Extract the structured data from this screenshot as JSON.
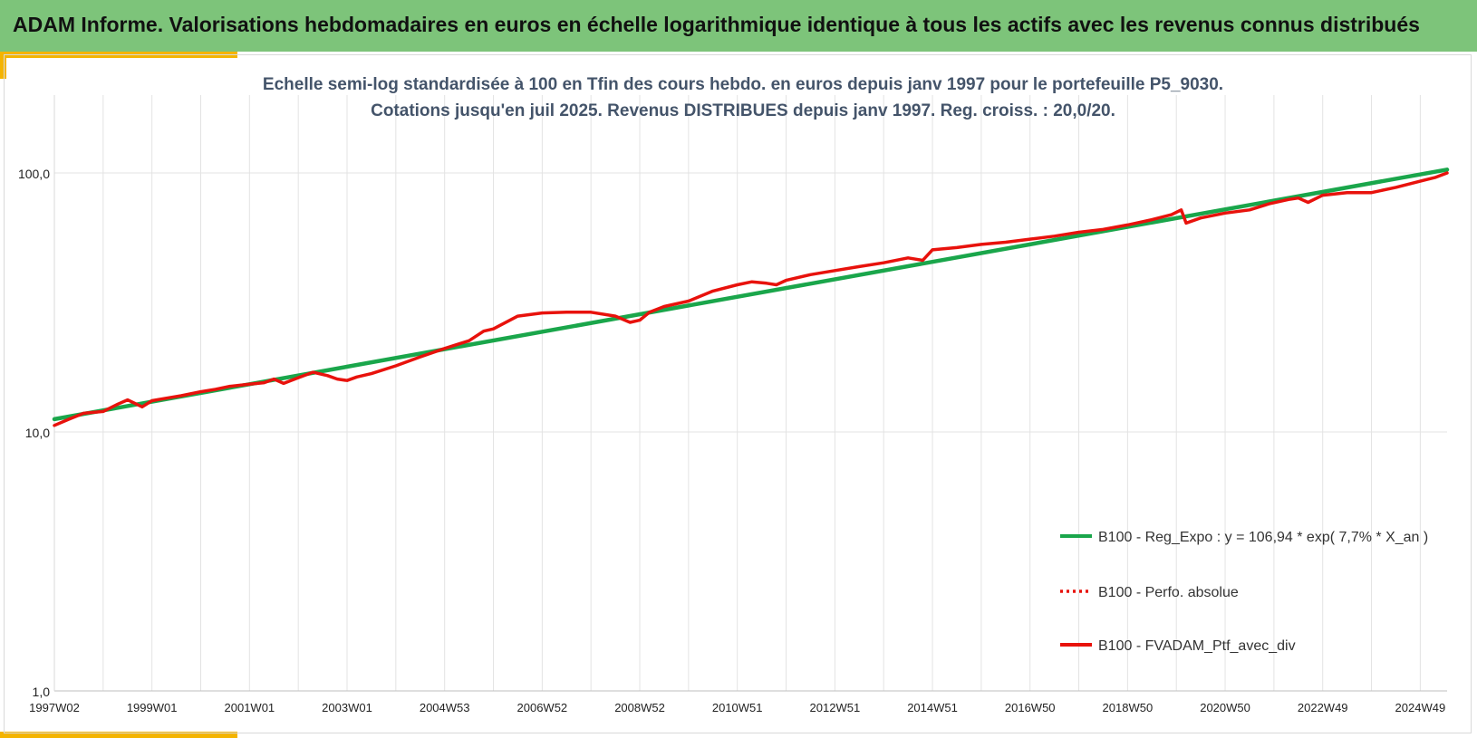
{
  "banner": {
    "title": "ADAM Informe. Valorisations hebdomadaires en euros en échelle logarithmique identique à tous les actifs avec les revenus connus distribués"
  },
  "colors": {
    "banner_bg": "#7dc47a",
    "accent": "#f4b400",
    "regression_line": "#1aa64b",
    "portfolio_line": "#e8120c",
    "grid": "#e3e3e3"
  },
  "chart_data": {
    "type": "line",
    "title": "Echelle semi-log standardisée  à 100 en Tfin des cours hebdo.  en euros depuis janv 1997 pour le portefeuille P5_9030.",
    "subtitle": "Cotations jusqu'en juil 2025. Revenus DISTRIBUES depuis janv 1997. Reg. croiss. : 20,0/20.",
    "xlabel": "",
    "ylabel": "",
    "y_scale": "log",
    "ylim": [
      1,
      200
    ],
    "y_ticks": [
      {
        "value": 1,
        "label": "1,0"
      },
      {
        "value": 10,
        "label": "10,0"
      },
      {
        "value": 100,
        "label": "100,0"
      }
    ],
    "xlim": [
      1997.0,
      2025.55
    ],
    "x_ticks": [
      {
        "value": 1997.0,
        "label": "1997W02"
      },
      {
        "value": 1999.0,
        "label": "1999W01"
      },
      {
        "value": 2001.0,
        "label": "2001W01"
      },
      {
        "value": 2003.0,
        "label": "2003W01"
      },
      {
        "value": 2005.0,
        "label": "2004W53"
      },
      {
        "value": 2007.0,
        "label": "2006W52"
      },
      {
        "value": 2009.0,
        "label": "2008W52"
      },
      {
        "value": 2011.0,
        "label": "2010W51"
      },
      {
        "value": 2013.0,
        "label": "2012W51"
      },
      {
        "value": 2015.0,
        "label": "2014W51"
      },
      {
        "value": 2017.0,
        "label": "2016W50"
      },
      {
        "value": 2019.0,
        "label": "2018W50"
      },
      {
        "value": 2021.0,
        "label": "2020W50"
      },
      {
        "value": 2023.0,
        "label": "2022W49"
      },
      {
        "value": 2025.0,
        "label": "2024W49"
      }
    ],
    "minor_x_ticks": [
      1998.0,
      2000.0,
      2002.0,
      2004.0,
      2006.0,
      2008.0,
      2010.0,
      2012.0,
      2014.0,
      2016.0,
      2018.0,
      2020.0,
      2022.0,
      2024.0
    ],
    "grid": true,
    "legend_position": "bottom-right",
    "series": [
      {
        "name": "B100 - Reg_Expo : y = 106,94 * exp( 7,7% *  X_an )",
        "style": "solid",
        "color": "#1aa64b",
        "x": [
          1997.0,
          2025.55
        ],
        "y": [
          11.2,
          103.0
        ]
      },
      {
        "name": "B100 - Perfo. absolue",
        "style": "dotted",
        "color": "#e8120c",
        "x": [],
        "y": []
      },
      {
        "name": "B100 - FVADAM_Ptf_avec_div",
        "style": "solid",
        "color": "#e8120c",
        "x": [
          1997.0,
          1997.3,
          1997.6,
          1998.0,
          1998.3,
          1998.5,
          1998.8,
          1999.0,
          1999.3,
          1999.6,
          2000.0,
          2000.3,
          2000.6,
          2001.0,
          2001.3,
          2001.5,
          2001.7,
          2002.0,
          2002.3,
          2002.6,
          2002.8,
          2003.0,
          2003.2,
          2003.5,
          2004.0,
          2004.5,
          2005.0,
          2005.5,
          2005.8,
          2006.0,
          2006.5,
          2007.0,
          2007.5,
          2008.0,
          2008.5,
          2008.8,
          2009.0,
          2009.2,
          2009.5,
          2010.0,
          2010.5,
          2011.0,
          2011.3,
          2011.6,
          2011.8,
          2012.0,
          2012.5,
          2013.0,
          2013.5,
          2014.0,
          2014.5,
          2014.8,
          2015.0,
          2015.5,
          2016.0,
          2016.5,
          2017.0,
          2017.5,
          2018.0,
          2018.5,
          2019.0,
          2019.5,
          2019.9,
          2020.1,
          2020.2,
          2020.5,
          2021.0,
          2021.5,
          2021.9,
          2022.3,
          2022.5,
          2022.7,
          2023.0,
          2023.5,
          2024.0,
          2024.5,
          2024.9,
          2025.1,
          2025.3,
          2025.55
        ],
        "y": [
          10.6,
          11.2,
          11.8,
          12.0,
          12.8,
          13.3,
          12.5,
          13.2,
          13.5,
          13.8,
          14.3,
          14.6,
          15.0,
          15.3,
          15.5,
          16.0,
          15.4,
          16.2,
          17.0,
          16.5,
          16.0,
          15.8,
          16.3,
          16.8,
          18.0,
          19.5,
          21.0,
          22.5,
          24.5,
          25.0,
          28.0,
          28.8,
          29.0,
          29.0,
          28.0,
          26.5,
          27.0,
          29.0,
          30.5,
          32.0,
          35.0,
          37.0,
          38.0,
          37.5,
          37.0,
          38.5,
          40.5,
          42.0,
          43.5,
          45.0,
          47.0,
          46.0,
          50.5,
          51.5,
          53.0,
          54.0,
          55.5,
          57.0,
          59.0,
          60.5,
          63.0,
          66.0,
          69.0,
          72.0,
          64.0,
          67.0,
          70.0,
          72.0,
          76.0,
          79.0,
          80.0,
          77.0,
          82.0,
          84.0,
          84.0,
          88.0,
          92.0,
          94.0,
          96.0,
          100.0
        ]
      }
    ]
  }
}
